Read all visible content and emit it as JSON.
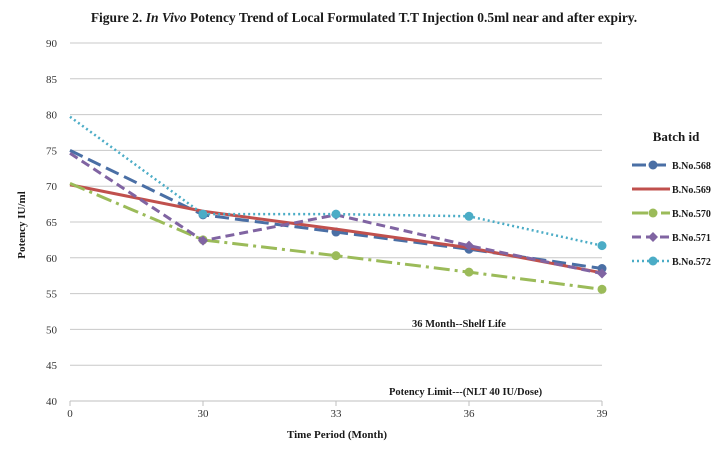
{
  "chart_data": {
    "type": "line",
    "title": {
      "prefix": "Figure 2. ",
      "italic": "In Vivo",
      "suffix": " Potency Trend of Local Formulated T.T Injection 0.5ml near and after expiry."
    },
    "xlabel": "Time Period (Month)",
    "ylabel": "Potency IU/ml",
    "categories": [
      "0",
      "30",
      "33",
      "36",
      "39"
    ],
    "yticks": [
      "40",
      "45",
      "50",
      "55",
      "60",
      "65",
      "70",
      "75",
      "80",
      "85",
      "90"
    ],
    "ylim": [
      40,
      90
    ],
    "grid": "horizontal",
    "legend_title": "Batch id",
    "legend_position": "right",
    "annotations": [
      "36 Month--Shelf Life",
      "Potency Limit---(NLT 40 IU/Dose)"
    ],
    "series": [
      {
        "name": "B.No.568",
        "values": [
          75.0,
          66.0,
          63.6,
          61.2,
          58.5
        ],
        "color": "#4A6FA5",
        "dash": "long-dash",
        "marker": "circle"
      },
      {
        "name": "B.No.569",
        "values": [
          70.2,
          66.5,
          64.0,
          61.4,
          57.9
        ],
        "color": "#C0504D",
        "dash": "solid",
        "marker": "none"
      },
      {
        "name": "B.No.570",
        "values": [
          70.4,
          62.5,
          60.3,
          58.0,
          55.6
        ],
        "color": "#9BBB59",
        "dash": "long-dash-dot",
        "marker": "circle"
      },
      {
        "name": "B.No.571",
        "values": [
          74.6,
          62.4,
          66.0,
          61.7,
          57.8
        ],
        "color": "#8064A2",
        "dash": "dash",
        "marker": "diamond"
      },
      {
        "name": "B.No.572",
        "values": [
          79.7,
          66.1,
          66.1,
          65.8,
          61.7
        ],
        "color": "#4BACC6",
        "dash": "dot",
        "marker": "circle"
      }
    ]
  }
}
